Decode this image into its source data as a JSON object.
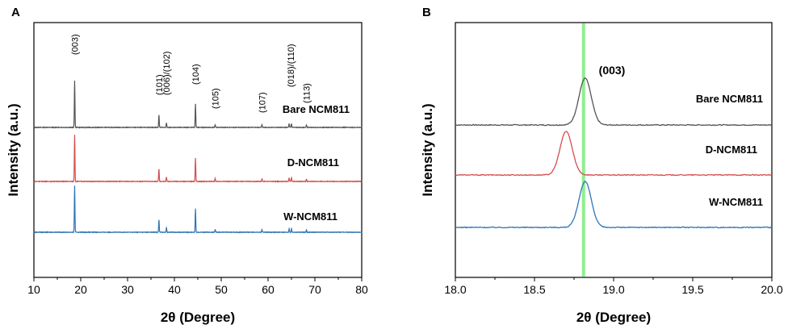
{
  "chart_data": [
    {
      "panel": "A",
      "type": "line",
      "xlabel": "2θ (Degree)",
      "ylabel": "Intensity (a.u.)",
      "xlim": [
        10,
        80
      ],
      "xticks": [
        "10",
        "20",
        "30",
        "40",
        "50",
        "60",
        "70",
        "80"
      ],
      "peak_labels": [
        {
          "text": "(003)",
          "x": 18.7
        },
        {
          "text": "(101)",
          "x": 36.7
        },
        {
          "text": "(006)/(102)",
          "x": 38.3
        },
        {
          "text": "(104)",
          "x": 44.5
        },
        {
          "text": "(105)",
          "x": 48.7
        },
        {
          "text": "(107)",
          "x": 58.7
        },
        {
          "text": "(018)/(110)",
          "x": 64.8
        },
        {
          "text": "(113)",
          "x": 68.2
        }
      ],
      "peaks": [
        {
          "x": 18.7,
          "h": 1.0
        },
        {
          "x": 36.7,
          "h": 0.27
        },
        {
          "x": 38.3,
          "h": 0.1
        },
        {
          "x": 44.5,
          "h": 0.5
        },
        {
          "x": 48.7,
          "h": 0.06
        },
        {
          "x": 58.7,
          "h": 0.06
        },
        {
          "x": 64.5,
          "h": 0.08
        },
        {
          "x": 65.0,
          "h": 0.08
        },
        {
          "x": 68.2,
          "h": 0.05
        }
      ],
      "series": [
        {
          "name": "Bare NCM811",
          "color": "#555555"
        },
        {
          "name": "D-NCM811",
          "color": "#d44d4d"
        },
        {
          "name": "W-NCM811",
          "color": "#2e75b6"
        }
      ]
    },
    {
      "panel": "B",
      "type": "line",
      "xlabel": "2θ (Degree)",
      "ylabel": "Intensity (a.u.)",
      "xlim": [
        18.0,
        20.0
      ],
      "xticks": [
        "18.0",
        "18.5",
        "19.0",
        "19.5",
        "20.0"
      ],
      "reference_line_x": 18.81,
      "reference_line_color": "#90ee90",
      "peak_label": "(003)",
      "series": [
        {
          "name": "Bare NCM811",
          "color": "#555555",
          "peak_x": 18.82
        },
        {
          "name": "D-NCM811",
          "color": "#d44d4d",
          "peak_x": 18.7
        },
        {
          "name": "W-NCM811",
          "color": "#2e75b6",
          "peak_x": 18.82
        }
      ]
    }
  ]
}
